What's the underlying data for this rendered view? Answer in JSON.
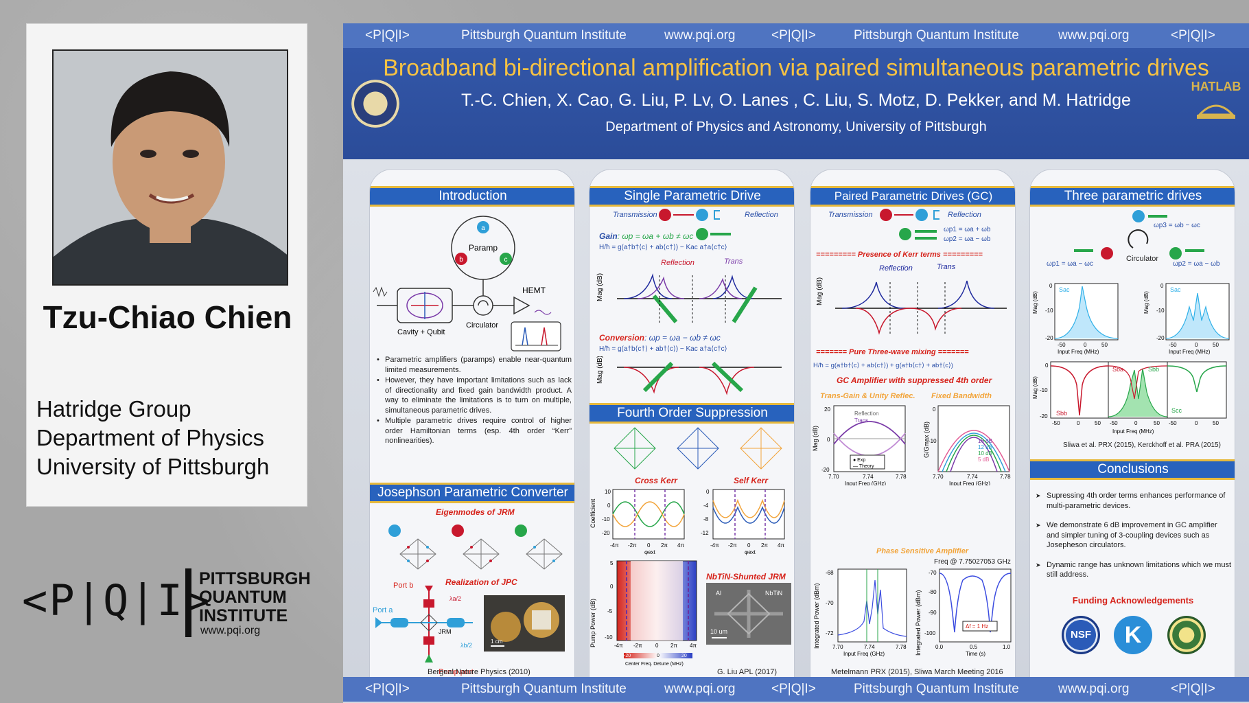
{
  "presenter": {
    "name": "Tzu-Chiao Chien",
    "group": "Hatridge Group",
    "department": "Department of Physics",
    "university": "University of Pittsburgh"
  },
  "pqi_logo": {
    "mark": "<P|Q|I>",
    "line1": "PITTSBURGH",
    "line2": "QUANTUM",
    "line3": "INSTITUTE",
    "url": "www.pqi.org"
  },
  "strip": {
    "mark": "<P|Q|I>",
    "institute": "Pittsburgh Quantum Institute",
    "url": "www.pqi.org"
  },
  "poster": {
    "title": "Broadband bi-directional amplification via paired simultaneous parametric drives",
    "authors": "T.-C. Chien, X. Cao, G. Liu, P. Lv, O. Lanes , C. Liu, S. Motz, D. Pekker, and M. Hatridge",
    "department": "Department of Physics and Astronomy, University of Pittsburgh",
    "lab_logo": "HATLAB"
  },
  "col1": {
    "intro_title": "Introduction",
    "diagram_labels": {
      "paramp": "Paramp",
      "hemt": "HEMT",
      "circulator": "Circulator",
      "cavity": "Cavity + Qubit"
    },
    "bullets": [
      "Parametric amplifiers (paramps) enable near-quantum limited measurements.",
      "However, they have important limitations such as lack of directionality and fixed gain bandwidth product. A way to eliminate the limitations is to turn on multiple, simultaneous parametric drives.",
      "Multiple parametric drives require control of higher order Hamiltonian terms (esp. 4th order “Kerr” nonlinearities)."
    ],
    "jpc_title": "Josephson Parametric Converter",
    "eigenmodes": "Eigenmodes of JRM",
    "realization": "Realization of JPC",
    "port_b": "Port b",
    "port_a": "Port a",
    "pump_port": "Pump port",
    "jrm": "JRM",
    "lambda1": "λa/2",
    "lambda2": "λb/2",
    "scale": "1 cm",
    "citation": "Bergeal  Nature Physics (2010)"
  },
  "col2": {
    "title": "Single Parametric Drive",
    "transmission": "Transmission",
    "reflection": "Reflection",
    "gain": "Gain",
    "gain_eq": ": ωp = ωa + ωb ≠ ωc",
    "hamiltonian_gain": "H/ħ = g(a†b†⟨c⟩ + ab⟨c†⟩) − Kac a†a⟨c†c⟩",
    "refl_label": "Reflection",
    "trans_label": "Trans",
    "mag_db": "Mag (dB)",
    "conversion": "Conversion",
    "conv_eq": ": ωp = ωa − ωb ≠ ωc",
    "hamiltonian_conv": "H/ħ = g(a†b⟨c†⟩ + ab†⟨c⟩) − Kac a†a⟨c†c⟩",
    "fourth_title": "Fourth Order Suppression",
    "cross_kerr": "Cross Kerr",
    "self_kerr": "Self Kerr",
    "coefficient": "Coefficient",
    "phi_ext": "φext",
    "pump_power": "Pump Power (dB)",
    "center_detune": "Center Freq. Detune (MHz)",
    "nbtin_title": "NbTiN-Shunted JRM",
    "al": "Al",
    "nbtin": "NbTiN",
    "scale": "10 um",
    "citation": "G. Liu APL (2017)",
    "ticks_phi": [
      "-4π",
      "-2π",
      "0",
      "2π",
      "4π"
    ],
    "cross_kerr_ticks": [
      "10",
      "0",
      "-10",
      "-20"
    ],
    "self_kerr_ticks": [
      "0",
      "-4",
      "-8",
      "-12"
    ],
    "pump_ticks": [
      "5",
      "0",
      "-5",
      "-10"
    ],
    "colorbar_ticks": [
      "-20",
      "0",
      "20"
    ]
  },
  "col3": {
    "title": "Paired Parametric Drives (GC)",
    "transmission": "Transmission",
    "reflection": "Reflection",
    "wp1": "ωp1 = ωa + ωb",
    "wp2": "ωp2 = ωa − ωb",
    "kerr_banner": "========= Presence of Kerr terms =========",
    "refl_label": "Reflection",
    "trans_label": "Trans",
    "mag_db": "Mag (dB)",
    "three_wave_banner": "======= Pure Three-wave mixing =======",
    "hamiltonian": "H/ħ = g(a†b†⟨c⟩ + ab⟨c†⟩) + g(a†b⟨c†⟩ + ab†⟨c⟩)",
    "gc_amp": "GC Amplifier with suppressed 4th order",
    "trans_gain": "Trans-Gain & Unity Reflec.",
    "fixed_bw": "Fixed Bandwidth",
    "plot1_legend": [
      "Reflection",
      "Trans"
    ],
    "plot1_key": [
      "● Exp",
      "— Theory"
    ],
    "plot1_yticks": [
      "20",
      "0",
      "-20"
    ],
    "plot2_legend": [
      "16 dB",
      "12 dB",
      "10 dB",
      "5 dB"
    ],
    "plot2_yticks": [
      "0",
      "-10"
    ],
    "gg_max": "G/Gmax (dB)",
    "input_freq": "Input Freq (GHz)",
    "freq_ticks": [
      "7.70",
      "7.74",
      "7.78"
    ],
    "phase_sensitive": "Phase Sensitive Amplifier",
    "freq_at": "Freq @ 7.75027053 GHz",
    "int_power": "Integrated Power (dBm)",
    "plot3_yticks": [
      "-68",
      "-70",
      "-72"
    ],
    "plot4_yticks": [
      "-70",
      "-80",
      "-90",
      "-100"
    ],
    "time": "Time (s)",
    "time_ticks": [
      "0.0",
      "0.5",
      "1.0"
    ],
    "df_label": "Δf = 1 Hz",
    "citation": "Metelmann PRX (2015), Sliwa March Meeting 2016"
  },
  "col4": {
    "title": "Three parametric drives",
    "wp3": "ωp3 = ωb − ωc",
    "wp1": "ωp1 = ωa − ωc",
    "wp2": "ωp2 = ωa − ωb",
    "circulator": "Circulator",
    "sac": "Sac",
    "sbb": "Sbb",
    "sba": "Sba",
    "scc": "Scc",
    "mag_db": "Mag (dB)",
    "input_freq": "Input Freq (MHz)",
    "small_ticks": [
      "-50",
      "0",
      "50"
    ],
    "y_ticks": [
      "0",
      "-10",
      "-20"
    ],
    "citation": "Sliwa et al. PRX (2015), Kerckhoff et al. PRA (2015)",
    "conclusions_title": "Conclusions",
    "conclusions": [
      "Supressing 4th order terms enhances performance of multi-parametric devices.",
      "We demonstrate  6 dB improvement in GC amplifier and simpler tuning of 3-coupling devices such as Josepheson circulators.",
      "Dynamic range has unknown limitations which we must still address."
    ],
    "funding": "Funding Acknowledgements",
    "logo_nsf": "NSF",
    "logo_k": "K"
  },
  "colors": {
    "poster_blue": "#2b4c99",
    "title_gold": "#f6c243",
    "section_blue": "#2862bd",
    "accent_red": "#d6231b",
    "accent_green": "#2aa14a",
    "accent_orange": "#f2a43a"
  }
}
